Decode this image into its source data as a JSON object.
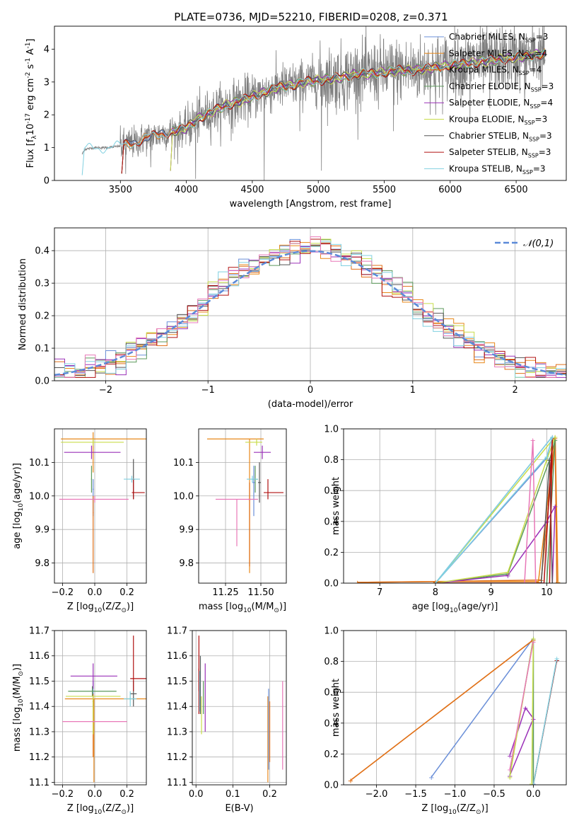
{
  "figure_title": "PLATE=0736, MJD=52210, FIBERID=0208, z=0.371",
  "colors": {
    "chabrier_miles": "#6a8fd8",
    "salpeter_miles": "#e8881a",
    "kroupa_miles": "#e0701a",
    "chabrier_elodie": "#5c9a5c",
    "salpeter_elodie": "#9a30b8",
    "kroupa_elodie": "#c8dc4a",
    "chabrier_stelib": "#555555",
    "salpeter_stelib": "#b01010",
    "kroupa_stelib": "#80d0e0",
    "data_gray": "#808080",
    "gaussian": "#5b8ad8",
    "pink": "#e878b8"
  },
  "chart_data": [
    {
      "id": "spectrum",
      "type": "line",
      "xlabel": "wavelength [Angstrom, rest frame]",
      "ylabel": "Flux [f$_\\lambda$10$^{-17}$ erg cm$^{-2}$ s$^{-1}$ A$^{-1}$]",
      "xlim": [
        3000,
        6880
      ],
      "ylim": [
        0,
        4.7
      ],
      "xticks": [
        3500,
        4000,
        4500,
        5000,
        5500,
        6000,
        6500
      ],
      "yticks": [
        0,
        1,
        2,
        3,
        4
      ],
      "legend": [
        {
          "label": "Chabrier MILES, N$_{SSP}$=3",
          "color": "#6a8fd8"
        },
        {
          "label": "Salpeter MILES, N$_{SSP}$=4",
          "color": "#e8881a"
        },
        {
          "label": "Kroupa MILES, N$_{SSP}$=4",
          "color": "#e0701a"
        },
        {
          "label": "Chabrier ELODIE, N$_{SSP}$=3",
          "color": "#5c9a5c"
        },
        {
          "label": "Salpeter ELODIE, N$_{SSP}$=4",
          "color": "#9a30b8"
        },
        {
          "label": "Kroupa ELODIE, N$_{SSP}$=3",
          "color": "#c8dc4a"
        },
        {
          "label": "Chabrier STELIB, N$_{SSP}$=3",
          "color": "#555555"
        },
        {
          "label": "Salpeter STELIB, N$_{SSP}$=3",
          "color": "#b01010"
        },
        {
          "label": "Kroupa STELIB, N$_{SSP}$=3",
          "color": "#80d0e0"
        }
      ],
      "legend_placement": "right",
      "continuum": [
        [
          3200,
          0
        ],
        [
          3210,
          0.8
        ],
        [
          3230,
          0.95
        ],
        [
          3300,
          1.0
        ],
        [
          3400,
          1.0
        ],
        [
          3500,
          1.05
        ],
        [
          3600,
          1.15
        ],
        [
          3700,
          1.3
        ],
        [
          3800,
          1.4
        ],
        [
          3900,
          1.5
        ],
        [
          4000,
          1.6
        ],
        [
          4100,
          1.9
        ],
        [
          4200,
          2.1
        ],
        [
          4300,
          2.3
        ],
        [
          4400,
          2.4
        ],
        [
          4500,
          2.55
        ],
        [
          4600,
          2.7
        ],
        [
          4700,
          2.85
        ],
        [
          4800,
          2.9
        ],
        [
          4900,
          3.0
        ],
        [
          5000,
          3.05
        ],
        [
          5100,
          3.1
        ],
        [
          5200,
          3.15
        ],
        [
          5300,
          3.25
        ],
        [
          5400,
          3.25
        ],
        [
          5500,
          3.3
        ],
        [
          5600,
          3.35
        ],
        [
          5700,
          3.35
        ],
        [
          5800,
          3.4
        ],
        [
          5900,
          3.45
        ],
        [
          6000,
          3.5
        ],
        [
          6100,
          3.55
        ],
        [
          6200,
          3.6
        ],
        [
          6300,
          3.65
        ],
        [
          6400,
          3.7
        ],
        [
          6500,
          3.75
        ],
        [
          6600,
          3.8
        ],
        [
          6700,
          3.85
        ]
      ]
    },
    {
      "id": "residuals",
      "type": "line",
      "xlabel": "(data-model)/error",
      "ylabel": "Normed distribution",
      "xlim": [
        -2.5,
        2.5
      ],
      "ylim": [
        0,
        0.47
      ],
      "xticks": [
        -2,
        -1,
        0,
        1,
        2
      ],
      "yticks": [
        0.0,
        0.1,
        0.2,
        0.3,
        0.4
      ],
      "grid": true,
      "legend": [
        {
          "label": "$\\mathcal{N}(0,1)$",
          "color": "#5b8ad8"
        }
      ],
      "legend_placement": "top-right"
    },
    {
      "id": "age_vs_Z",
      "type": "scatter",
      "xlabel": "Z [log$_{10}$(Z/Z$_\\odot$)]",
      "ylabel": "age  [log$_{10}$(age/yr)]",
      "xlim": [
        -0.25,
        0.32
      ],
      "ylim": [
        9.74,
        10.2
      ],
      "xticks": [
        -0.2,
        0.0,
        0.2
      ],
      "yticks": [
        9.8,
        9.9,
        10.0,
        10.1
      ],
      "grid": true,
      "points": [
        {
          "series": "Chabrier MILES",
          "x": -0.01,
          "y": 10.02,
          "xerr": 0.004,
          "yerr": [
            0.08,
            0.03
          ]
        },
        {
          "series": "Salpeter MILES",
          "x": -0.01,
          "y": 10.17,
          "xerr": [
            0.2,
            0.33
          ],
          "yerr": [
            0.1,
            0.02
          ]
        },
        {
          "series": "Kroupa MILES",
          "x": -0.01,
          "y": 9.95,
          "xerr": 0.003,
          "yerr": [
            0.18,
            0.05
          ]
        },
        {
          "series": "Chabrier ELODIE",
          "x": -0.02,
          "y": 10.05,
          "xerr": 0.003,
          "yerr": [
            0.04,
            0.04
          ]
        },
        {
          "series": "Salpeter ELODIE",
          "x": -0.02,
          "y": 10.13,
          "xerr": [
            0.17,
            0.18
          ],
          "yerr": [
            0.02,
            0.02
          ]
        },
        {
          "series": "Kroupa ELODIE",
          "x": -0.01,
          "y": 10.16,
          "xerr": [
            0.2,
            0.19
          ],
          "yerr": [
            0.01,
            0.01
          ]
        },
        {
          "series": "Chabrier STELIB",
          "x": 0.24,
          "y": 10.05,
          "xerr": 0.01,
          "yerr": [
            0.06,
            0.06
          ]
        },
        {
          "series": "Salpeter STELIB",
          "x": 0.24,
          "y": 10.01,
          "xerr": [
            0.01,
            0.07
          ],
          "yerr": [
            0.02,
            0.04
          ]
        },
        {
          "series": "Kroupa STELIB",
          "x": 0.23,
          "y": 10.05,
          "xerr": 0.05,
          "yerr": [
            0.01,
            0.01
          ]
        },
        {
          "series": "pink",
          "x": 0.0,
          "y": 9.99,
          "xerr": [
            0.22,
            0.21
          ],
          "yerr": [
            0.01,
            0.01
          ]
        }
      ]
    },
    {
      "id": "age_vs_mass",
      "type": "scatter",
      "xlabel": "mass [log$_{10}$(M/M$_\\odot$)]",
      "ylabel": "",
      "xlim": [
        11.06,
        11.68
      ],
      "ylim": [
        9.74,
        10.2
      ],
      "xticks": [
        11.25,
        11.5
      ],
      "yticks": [
        9.8,
        9.9,
        10.0,
        10.1
      ],
      "grid": true
    },
    {
      "id": "weight_vs_age",
      "type": "line",
      "xlabel": "age  [log$_{10}$(age/yr)]",
      "ylabel": "mass weight",
      "xlim": [
        6.35,
        10.35
      ],
      "ylim": [
        0,
        1
      ],
      "xticks": [
        7,
        8,
        9,
        10
      ],
      "yticks": [
        0.0,
        0.2,
        0.4,
        0.6,
        0.8,
        1.0
      ],
      "grid": true
    },
    {
      "id": "mass_vs_Z",
      "type": "scatter",
      "xlabel": "Z [log$_{10}$(Z/Z$_\\odot$)]",
      "ylabel": "mass [log$_{10}$(M/M$_\\odot$)]",
      "xlim": [
        -0.25,
        0.32
      ],
      "ylim": [
        11.09,
        11.7
      ],
      "xticks": [
        -0.2,
        0.0,
        0.2
      ],
      "yticks": [
        11.1,
        11.2,
        11.3,
        11.4,
        11.5,
        11.6,
        11.7
      ],
      "grid": true
    },
    {
      "id": "mass_vs_ebv",
      "type": "scatter",
      "xlabel": "E(B-V)",
      "ylabel": "",
      "xlim": [
        -0.01,
        0.245
      ],
      "ylim": [
        11.09,
        11.7
      ],
      "xticks": [
        0.0,
        0.1,
        0.2
      ],
      "yticks": [
        11.1,
        11.2,
        11.3,
        11.4,
        11.5,
        11.6,
        11.7
      ],
      "grid": true
    },
    {
      "id": "weight_vs_Z",
      "type": "line",
      "xlabel": "Z [log$_{10}$(Z/Z$_\\odot$)]",
      "ylabel": "mass weight",
      "xlim": [
        -2.42,
        0.42
      ],
      "ylim": [
        0,
        1
      ],
      "xticks": [
        -2.0,
        -1.5,
        -1.0,
        -0.5,
        0.0
      ],
      "yticks": [
        0.0,
        0.2,
        0.4,
        0.6,
        0.8,
        1.0
      ],
      "grid": true
    }
  ]
}
